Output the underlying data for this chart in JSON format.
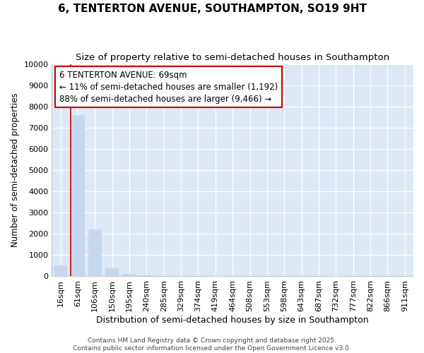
{
  "title": "6, TENTERTON AVENUE, SOUTHAMPTON, SO19 9HT",
  "subtitle": "Size of property relative to semi-detached houses in Southampton",
  "xlabel": "Distribution of semi-detached houses by size in Southampton",
  "ylabel": "Number of semi-detached properties",
  "categories": [
    "16sqm",
    "61sqm",
    "106sqm",
    "150sqm",
    "195sqm",
    "240sqm",
    "285sqm",
    "329sqm",
    "374sqm",
    "419sqm",
    "464sqm",
    "508sqm",
    "553sqm",
    "598sqm",
    "643sqm",
    "687sqm",
    "732sqm",
    "777sqm",
    "822sqm",
    "866sqm",
    "911sqm"
  ],
  "values": [
    500,
    7600,
    2200,
    370,
    100,
    40,
    15,
    8,
    4,
    2,
    1,
    1,
    1,
    0,
    0,
    0,
    0,
    0,
    0,
    0,
    0
  ],
  "bar_color": "#c5d8ee",
  "vline_color": "#cc0000",
  "vline_bar_index": 1,
  "annotation_title": "6 TENTERTON AVENUE: 69sqm",
  "annotation_line1": "← 11% of semi-detached houses are smaller (1,192)",
  "annotation_line2": "88% of semi-detached houses are larger (9,466) →",
  "annotation_box_color": "#ffffff",
  "annotation_border_color": "#cc0000",
  "ylim": [
    0,
    10000
  ],
  "yticks": [
    0,
    1000,
    2000,
    3000,
    4000,
    5000,
    6000,
    7000,
    8000,
    9000,
    10000
  ],
  "fig_bg_color": "#ffffff",
  "plot_bg_color": "#dde8f5",
  "grid_color": "#ffffff",
  "footer": "Contains HM Land Registry data © Crown copyright and database right 2025.\nContains public sector information licensed under the Open Government Licence v3.0.",
  "title_fontsize": 11,
  "subtitle_fontsize": 9.5,
  "xlabel_fontsize": 9,
  "ylabel_fontsize": 8.5,
  "tick_fontsize": 8,
  "annotation_fontsize": 8.5,
  "footer_fontsize": 6.5
}
